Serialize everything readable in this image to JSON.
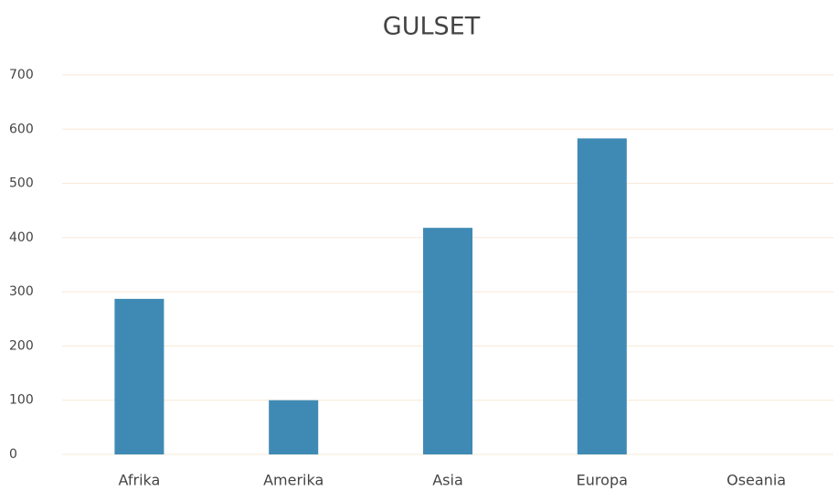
{
  "chart_data": {
    "type": "bar",
    "title": "GULSET",
    "categories": [
      "Afrika",
      "Amerika",
      "Asia",
      "Europa",
      "Oseania"
    ],
    "values": [
      287,
      100,
      418,
      583,
      0
    ],
    "color": "#3f8ab5",
    "ylim": [
      0,
      700
    ],
    "yticks": [
      0,
      100,
      200,
      300,
      400,
      500,
      600,
      700
    ],
    "grid": true
  }
}
